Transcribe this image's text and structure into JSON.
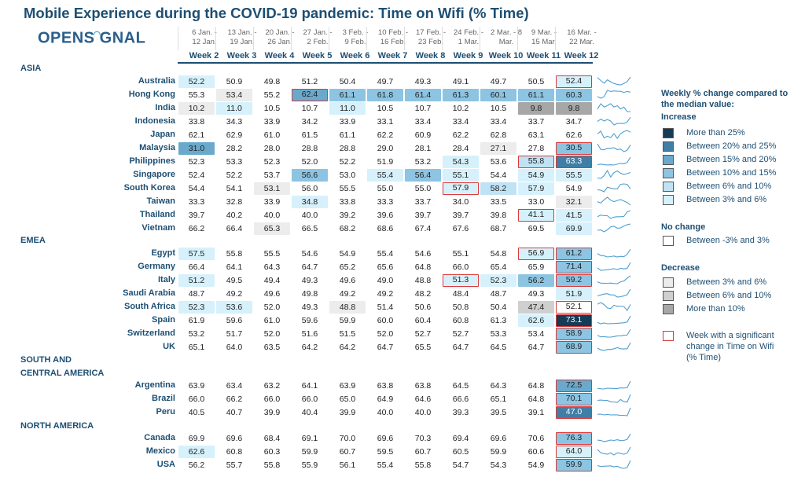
{
  "title": "Mobile Experience during the COVID-19 pandemic: Time on Wifi (% Time)",
  "logo": {
    "text_a": "OPENS",
    "text_b": "GNAL"
  },
  "colors": {
    "c0": "#ffffff",
    "d1": "#ececec",
    "d2": "#cfcfcf",
    "d3": "#a7a7a7",
    "i1": "#d6f1fb",
    "i2": "#bfe3f4",
    "i3": "#8cc4e2",
    "i4": "#6aa9cc",
    "i5": "#3f7fa6",
    "i6": "#163b57",
    "sig": "#d93a3a"
  },
  "chart_data": {
    "type": "table",
    "weeks": [
      {
        "dates": [
          "6 Jan. -",
          "12 Jan."
        ],
        "label": "Week 2"
      },
      {
        "dates": [
          "13 Jan. -",
          "19 Jan."
        ],
        "label": "Week 3"
      },
      {
        "dates": [
          "20 Jan. -",
          "26 Jan."
        ],
        "label": "Week 4"
      },
      {
        "dates": [
          "27 Jan. -",
          "2 Feb."
        ],
        "label": "Week 5"
      },
      {
        "dates": [
          "3 Feb. -",
          "9 Feb."
        ],
        "label": "Week 6"
      },
      {
        "dates": [
          "10 Feb. -",
          "16 Feb."
        ],
        "label": "Week 7"
      },
      {
        "dates": [
          "17 Feb. -",
          "23 Feb."
        ],
        "label": "Week 8"
      },
      {
        "dates": [
          "24 Feb. -",
          "1 Mar."
        ],
        "label": "Week 9"
      },
      {
        "dates": [
          "2 Mar. - 8",
          "Mar."
        ],
        "label": "Week 10"
      },
      {
        "dates": [
          "9 Mar. -",
          "15 Mar."
        ],
        "label": "Week 11"
      },
      {
        "dates": [
          "16 Mar. -",
          "22 Mar."
        ],
        "label": "Week 12"
      }
    ],
    "regions": [
      {
        "name": [
          "ASIA"
        ],
        "countries": [
          {
            "name": "Australia",
            "values": [
              52.2,
              50.9,
              49.8,
              51.2,
              50.4,
              49.7,
              49.3,
              49.1,
              49.7,
              50.5,
              52.4
            ],
            "cls": [
              "i1",
              "c0",
              "c0",
              "c0",
              "c0",
              "c0",
              "c0",
              "c0",
              "c0",
              "c0",
              "i1"
            ],
            "sig": [
              10
            ]
          },
          {
            "name": "Hong Kong",
            "values": [
              55.3,
              53.4,
              55.2,
              62.4,
              61.1,
              61.8,
              61.4,
              61.3,
              60.1,
              61.1,
              60.3
            ],
            "cls": [
              "c0",
              "d1",
              "c0",
              "i4",
              "i3",
              "i3",
              "i3",
              "i3",
              "i3",
              "i3",
              "i3"
            ],
            "sig": [
              3
            ]
          },
          {
            "name": "India",
            "values": [
              10.2,
              11.0,
              10.5,
              10.7,
              11.0,
              10.5,
              10.7,
              10.2,
              10.5,
              9.8,
              9.8
            ],
            "cls": [
              "d1",
              "i1",
              "c0",
              "c0",
              "i1",
              "c0",
              "c0",
              "c0",
              "c0",
              "d3",
              "d3"
            ],
            "sig": []
          },
          {
            "name": "Indonesia",
            "values": [
              33.8,
              34.3,
              33.9,
              34.2,
              33.9,
              33.1,
              33.4,
              33.4,
              33.4,
              33.7,
              34.7
            ],
            "cls": [
              "c0",
              "c0",
              "c0",
              "c0",
              "c0",
              "c0",
              "c0",
              "c0",
              "c0",
              "c0",
              "c0"
            ],
            "sig": []
          },
          {
            "name": "Japan",
            "values": [
              62.1,
              62.9,
              61.0,
              61.5,
              61.1,
              62.2,
              60.9,
              62.2,
              62.8,
              63.1,
              62.6
            ],
            "cls": [
              "c0",
              "c0",
              "c0",
              "c0",
              "c0",
              "c0",
              "c0",
              "c0",
              "c0",
              "c0",
              "c0"
            ],
            "sig": []
          },
          {
            "name": "Malaysia",
            "values": [
              31.0,
              28.2,
              28.0,
              28.8,
              28.8,
              29.0,
              28.1,
              28.4,
              27.1,
              27.8,
              30.5
            ],
            "cls": [
              "i4",
              "c0",
              "c0",
              "c0",
              "c0",
              "c0",
              "c0",
              "c0",
              "d1",
              "c0",
              "i3"
            ],
            "sig": [
              10
            ]
          },
          {
            "name": "Philippines",
            "values": [
              52.3,
              53.3,
              52.3,
              52.0,
              52.2,
              51.9,
              53.2,
              54.3,
              53.6,
              55.8,
              63.3
            ],
            "cls": [
              "c0",
              "c0",
              "c0",
              "c0",
              "c0",
              "c0",
              "c0",
              "i1",
              "c0",
              "i2",
              "i5"
            ],
            "sig": [
              9,
              10
            ]
          },
          {
            "name": "Singapore",
            "values": [
              52.4,
              52.2,
              53.7,
              56.6,
              53.0,
              55.4,
              56.4,
              55.1,
              54.4,
              54.9,
              55.5
            ],
            "cls": [
              "c0",
              "c0",
              "c0",
              "i3",
              "c0",
              "i1",
              "i3",
              "i1",
              "c0",
              "i1",
              "i1"
            ],
            "sig": []
          },
          {
            "name": "South Korea",
            "values": [
              54.4,
              54.1,
              53.1,
              56.0,
              55.5,
              55.0,
              55.0,
              57.9,
              58.2,
              57.9,
              54.9
            ],
            "cls": [
              "c0",
              "c0",
              "d1",
              "c0",
              "c0",
              "c0",
              "c0",
              "i1",
              "i2",
              "i1",
              "c0"
            ],
            "sig": [
              7
            ]
          },
          {
            "name": "Taiwan",
            "values": [
              33.3,
              32.8,
              33.9,
              34.8,
              33.8,
              33.3,
              33.7,
              34.0,
              33.5,
              33.0,
              32.1
            ],
            "cls": [
              "c0",
              "c0",
              "c0",
              "i1",
              "c0",
              "c0",
              "c0",
              "c0",
              "c0",
              "c0",
              "d1"
            ],
            "sig": []
          },
          {
            "name": "Thailand",
            "values": [
              39.7,
              40.2,
              40.0,
              40.0,
              39.2,
              39.6,
              39.7,
              39.7,
              39.8,
              41.1,
              41.5
            ],
            "cls": [
              "c0",
              "c0",
              "c0",
              "c0",
              "c0",
              "c0",
              "c0",
              "c0",
              "c0",
              "i1",
              "i1"
            ],
            "sig": [
              9
            ]
          },
          {
            "name": "Vietnam",
            "values": [
              66.2,
              66.4,
              65.3,
              66.5,
              68.2,
              68.6,
              67.4,
              67.6,
              68.7,
              69.5,
              69.9
            ],
            "cls": [
              "c0",
              "c0",
              "d1",
              "c0",
              "c0",
              "c0",
              "c0",
              "c0",
              "c0",
              "c0",
              "i1"
            ],
            "sig": []
          }
        ]
      },
      {
        "name": [
          "EMEA"
        ],
        "countries": [
          {
            "name": "Egypt",
            "values": [
              57.5,
              55.8,
              55.5,
              54.6,
              54.9,
              55.4,
              54.6,
              55.1,
              54.8,
              56.9,
              61.2
            ],
            "cls": [
              "i1",
              "c0",
              "c0",
              "c0",
              "c0",
              "c0",
              "c0",
              "c0",
              "c0",
              "i1",
              "i3"
            ],
            "sig": [
              9,
              10
            ]
          },
          {
            "name": "Germany",
            "values": [
              66.4,
              64.1,
              64.3,
              64.7,
              65.2,
              65.6,
              64.8,
              66.0,
              65.4,
              65.9,
              71.4
            ],
            "cls": [
              "c0",
              "c0",
              "c0",
              "c0",
              "c0",
              "c0",
              "c0",
              "c0",
              "c0",
              "c0",
              "i3"
            ],
            "sig": [
              10
            ]
          },
          {
            "name": "Italy",
            "values": [
              51.2,
              49.5,
              49.4,
              49.3,
              49.6,
              49.0,
              48.8,
              51.3,
              52.3,
              56.2,
              59.2
            ],
            "cls": [
              "i1",
              "c0",
              "c0",
              "c0",
              "c0",
              "c0",
              "c0",
              "i1",
              "i1",
              "i3",
              "i3"
            ],
            "sig": [
              7,
              10
            ]
          },
          {
            "name": "Saudi Arabia",
            "values": [
              48.7,
              49.2,
              49.6,
              49.8,
              49.2,
              49.2,
              48.2,
              48.4,
              48.7,
              49.3,
              51.9
            ],
            "cls": [
              "c0",
              "c0",
              "c0",
              "c0",
              "c0",
              "c0",
              "c0",
              "c0",
              "c0",
              "c0",
              "i1"
            ],
            "sig": []
          },
          {
            "name": "South Africa",
            "values": [
              52.3,
              53.6,
              52.0,
              49.3,
              48.8,
              51.4,
              50.6,
              50.8,
              50.4,
              47.4,
              52.1
            ],
            "cls": [
              "i1",
              "i1",
              "c0",
              "c0",
              "d1",
              "c0",
              "c0",
              "c0",
              "c0",
              "d2",
              "c0"
            ],
            "sig": [
              10
            ]
          },
          {
            "name": "Spain",
            "values": [
              61.9,
              59.6,
              61.0,
              59.6,
              59.9,
              60.0,
              60.4,
              60.8,
              61.3,
              62.6,
              73.1
            ],
            "cls": [
              "c0",
              "c0",
              "c0",
              "c0",
              "c0",
              "c0",
              "c0",
              "c0",
              "c0",
              "i1",
              "i6"
            ],
            "sig": [
              10
            ]
          },
          {
            "name": "Switzerland",
            "values": [
              53.2,
              51.7,
              52.0,
              51.6,
              51.5,
              52.0,
              52.7,
              52.7,
              53.3,
              53.4,
              58.9
            ],
            "cls": [
              "c0",
              "c0",
              "c0",
              "c0",
              "c0",
              "c0",
              "c0",
              "c0",
              "c0",
              "c0",
              "i3"
            ],
            "sig": [
              10
            ]
          },
          {
            "name": "UK",
            "values": [
              65.1,
              64.0,
              63.5,
              64.2,
              64.2,
              64.7,
              65.5,
              64.7,
              64.5,
              64.7,
              68.9
            ],
            "cls": [
              "c0",
              "c0",
              "c0",
              "c0",
              "c0",
              "c0",
              "c0",
              "c0",
              "c0",
              "c0",
              "i3"
            ],
            "sig": [
              10
            ]
          }
        ]
      },
      {
        "name": [
          "SOUTH AND",
          "CENTRAL AMERICA"
        ],
        "countries": [
          {
            "name": "Argentina",
            "values": [
              63.9,
              63.4,
              63.2,
              64.1,
              63.9,
              63.8,
              63.8,
              64.5,
              64.3,
              64.8,
              72.5
            ],
            "cls": [
              "c0",
              "c0",
              "c0",
              "c0",
              "c0",
              "c0",
              "c0",
              "c0",
              "c0",
              "c0",
              "i4"
            ],
            "sig": [
              10
            ]
          },
          {
            "name": "Brazil",
            "values": [
              66.0,
              66.2,
              66.0,
              66.0,
              65.0,
              64.9,
              64.6,
              66.6,
              65.1,
              64.8,
              70.1
            ],
            "cls": [
              "c0",
              "c0",
              "c0",
              "c0",
              "c0",
              "c0",
              "c0",
              "c0",
              "c0",
              "c0",
              "i3"
            ],
            "sig": [
              10
            ]
          },
          {
            "name": "Peru",
            "values": [
              40.5,
              40.7,
              39.9,
              40.4,
              39.9,
              40.0,
              40.0,
              39.3,
              39.5,
              39.1,
              47.0
            ],
            "cls": [
              "c0",
              "c0",
              "c0",
              "c0",
              "c0",
              "c0",
              "c0",
              "c0",
              "c0",
              "c0",
              "i5"
            ],
            "sig": [
              10
            ]
          }
        ]
      },
      {
        "name": [
          "NORTH AMERICA"
        ],
        "countries": [
          {
            "name": "Canada",
            "values": [
              69.9,
              69.6,
              68.4,
              69.1,
              70.0,
              69.6,
              70.3,
              69.4,
              69.6,
              70.6,
              76.3
            ],
            "cls": [
              "c0",
              "c0",
              "c0",
              "c0",
              "c0",
              "c0",
              "c0",
              "c0",
              "c0",
              "c0",
              "i3"
            ],
            "sig": [
              10
            ]
          },
          {
            "name": "Mexico",
            "values": [
              62.6,
              60.8,
              60.3,
              59.9,
              60.7,
              59.5,
              60.7,
              60.5,
              59.9,
              60.6,
              64.0
            ],
            "cls": [
              "i1",
              "c0",
              "c0",
              "c0",
              "c0",
              "c0",
              "c0",
              "c0",
              "c0",
              "c0",
              "i1"
            ],
            "sig": [
              10
            ]
          },
          {
            "name": "USA",
            "values": [
              56.2,
              55.7,
              55.8,
              55.9,
              56.1,
              55.4,
              55.8,
              54.7,
              54.3,
              54.9,
              59.9
            ],
            "cls": [
              "c0",
              "c0",
              "c0",
              "c0",
              "c0",
              "c0",
              "c0",
              "c0",
              "c0",
              "c0",
              "i3"
            ],
            "sig": [
              10
            ]
          }
        ]
      }
    ]
  },
  "legend": {
    "title": [
      "Weekly % change compared to",
      "the median value:"
    ],
    "increase_title": "Increase",
    "increase": [
      {
        "label": "More than 25%",
        "cls": "i6"
      },
      {
        "label": "Between 20% and 25%",
        "cls": "i5"
      },
      {
        "label": "Between 15% and 20%",
        "cls": "i4"
      },
      {
        "label": "Between 10% and 15%",
        "cls": "i3"
      },
      {
        "label": "Between 6% and 10%",
        "cls": "i2"
      },
      {
        "label": "Between 3% and  6%",
        "cls": "i1"
      }
    ],
    "nochange_title": "No change",
    "nochange": [
      {
        "label": "Between -3% and 3%",
        "cls": "c0"
      }
    ],
    "decrease_title": "Decrease",
    "decrease": [
      {
        "label": "Between 3% and  6%",
        "cls": "d1"
      },
      {
        "label": "Between 6% and 10%",
        "cls": "d2"
      },
      {
        "label": "More than 10%",
        "cls": "d3"
      }
    ],
    "sig_label": [
      "Week with a significant",
      "change in Time on Wifi",
      "(% Time)"
    ]
  }
}
